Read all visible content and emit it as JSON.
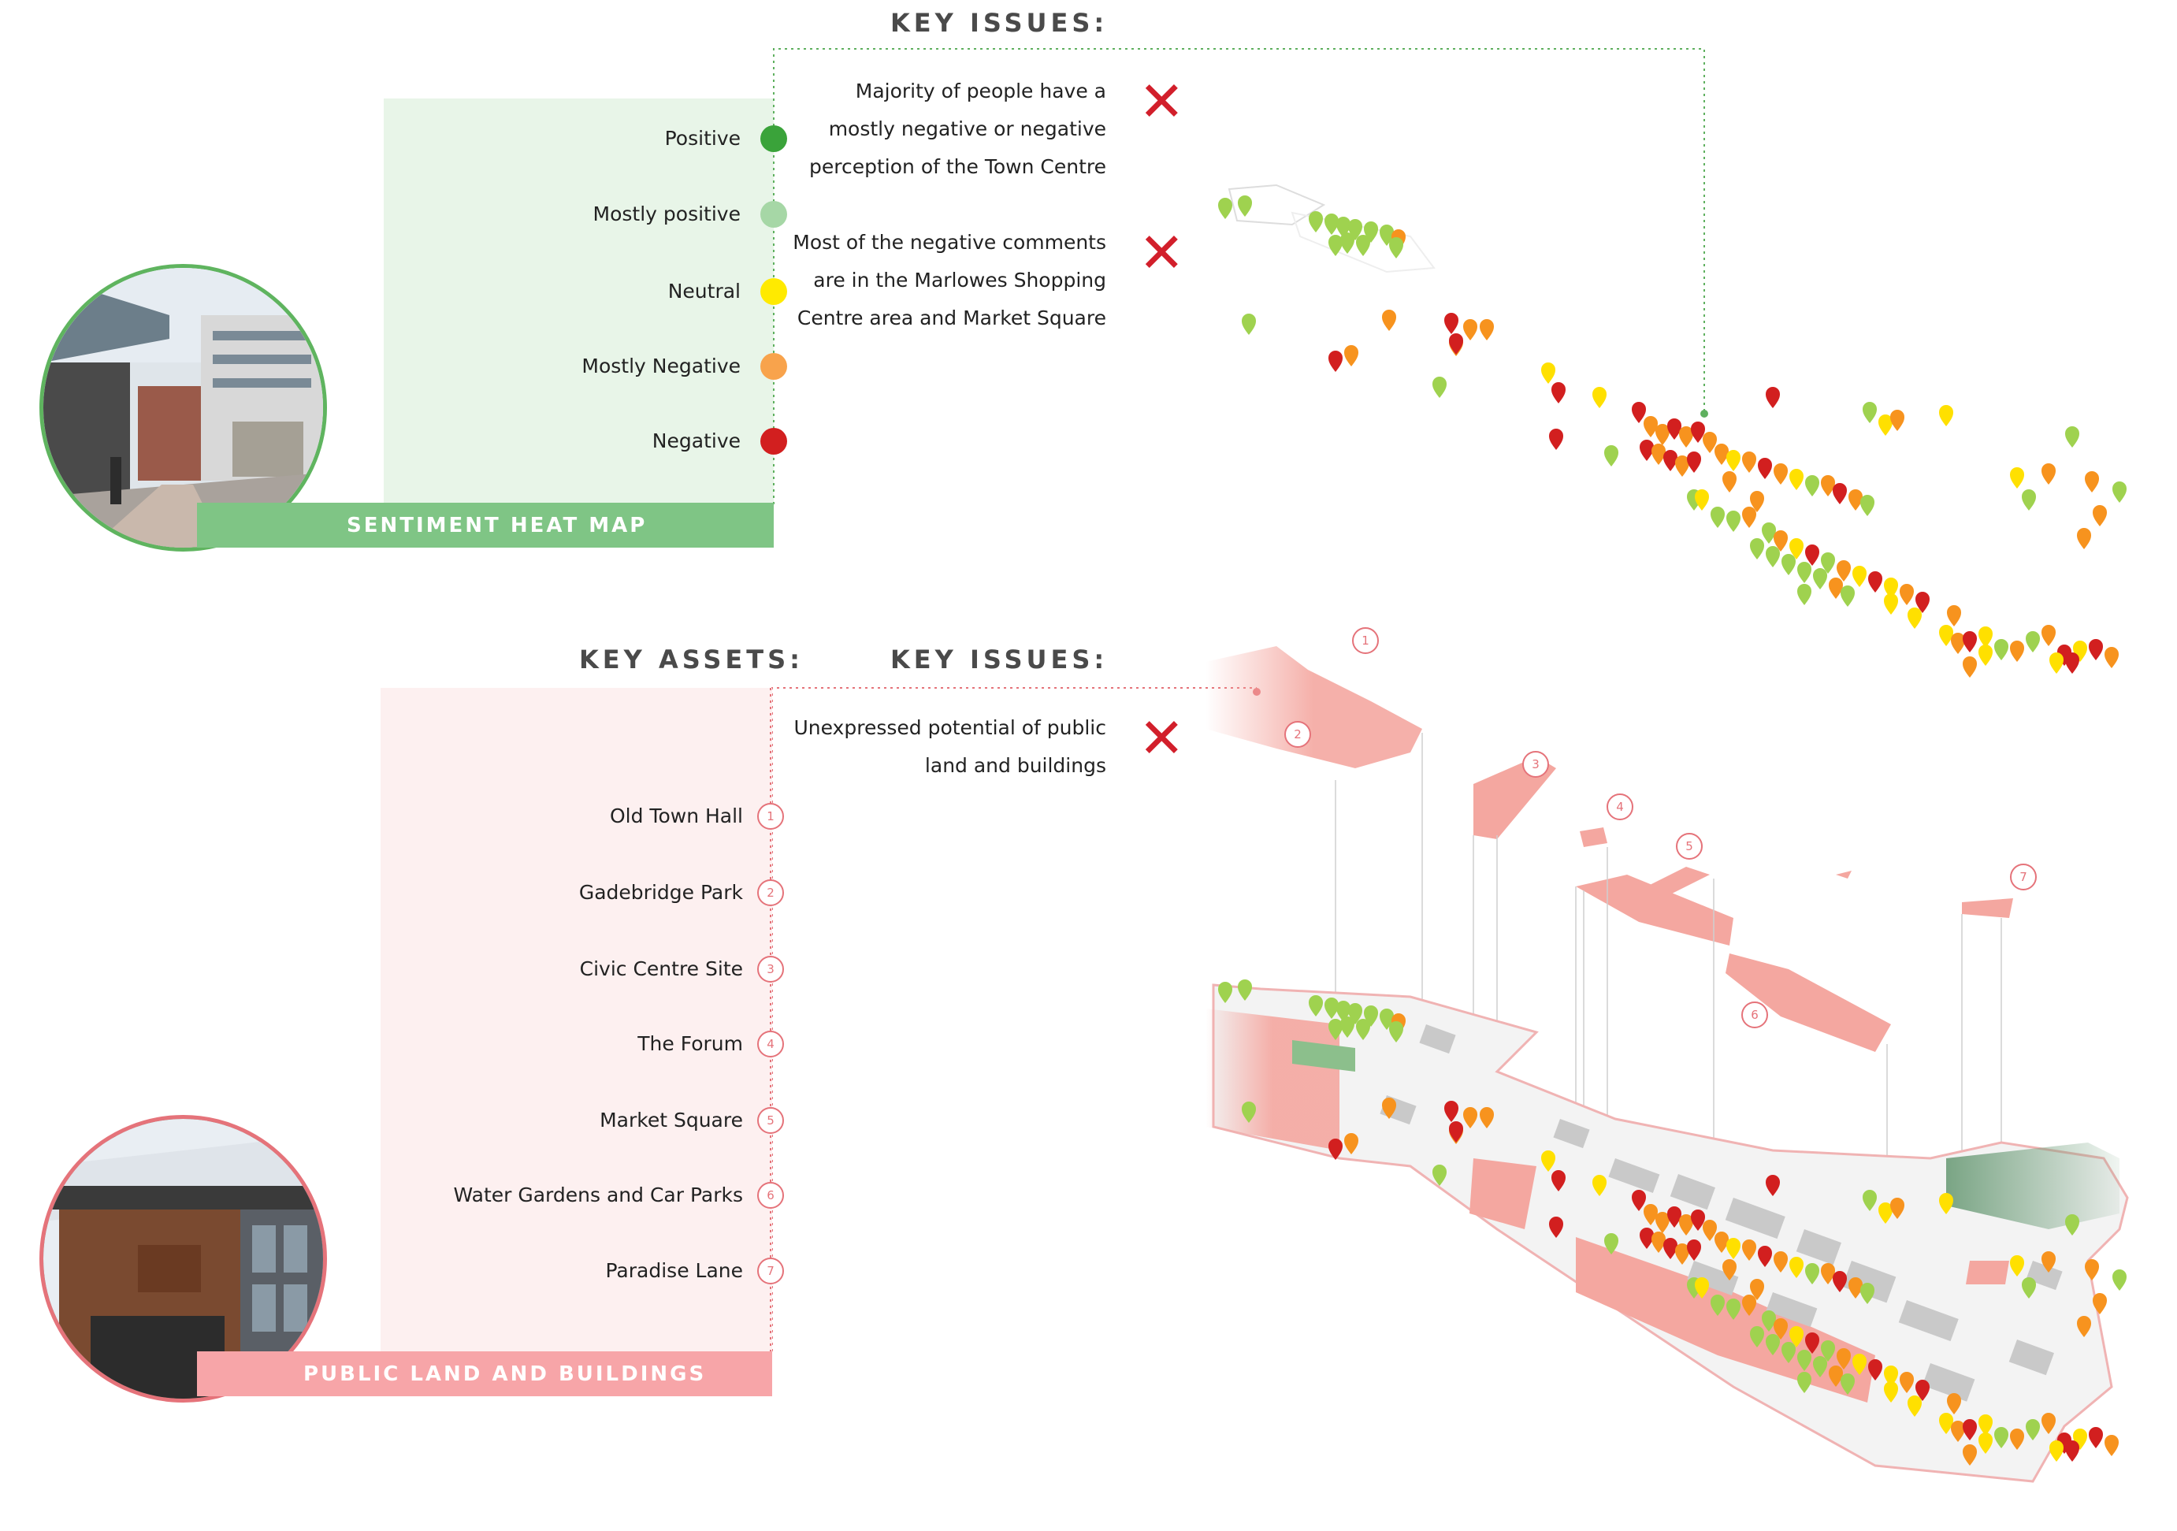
{
  "sentiment": {
    "heading": "KEY ISSUES:",
    "banner": "SENTIMENT HEAT MAP",
    "legend": [
      {
        "label": "Positive",
        "color": "#3aa33a"
      },
      {
        "label": "Mostly positive",
        "color": "#a6d7a6"
      },
      {
        "label": "Neutral",
        "color": "#ffea00"
      },
      {
        "label": "Mostly Negative",
        "color": "#f8a34c"
      },
      {
        "label": "Negative",
        "color": "#d21f1f"
      }
    ],
    "issues": [
      [
        "Majority of people have a",
        "mostly negative or negative",
        "perception of the Town Centre"
      ],
      [
        "Most of the negative comments",
        "are in the Marlowes Shopping",
        "Centre area and Market Square"
      ]
    ],
    "panel_color": "#e8f5e8",
    "banner_color": "#7fc585"
  },
  "public_land": {
    "assets_heading": "KEY ASSETS:",
    "issues_heading": "KEY ISSUES:",
    "banner": "PUBLIC LAND AND BUILDINGS",
    "issues": [
      [
        "Unexpressed potential of public",
        "land and  buildings"
      ]
    ],
    "assets": [
      {
        "label": "Old Town Hall",
        "num": "1"
      },
      {
        "label": "Gadebridge Park",
        "num": "2"
      },
      {
        "label": "Civic Centre Site",
        "num": "3"
      },
      {
        "label": "The Forum",
        "num": "4"
      },
      {
        "label": "Market Square",
        "num": "5"
      },
      {
        "label": "Water Gardens and Car Parks",
        "num": "6"
      },
      {
        "label": "Paradise Lane",
        "num": "7"
      }
    ],
    "panel_color": "#fdf0f0",
    "banner_color": "#f7a5a8"
  },
  "map_labels": [
    "1",
    "2",
    "3",
    "4",
    "5",
    "6",
    "7"
  ],
  "cross_icon": "cross-icon",
  "cross_color": "#d21f2b"
}
